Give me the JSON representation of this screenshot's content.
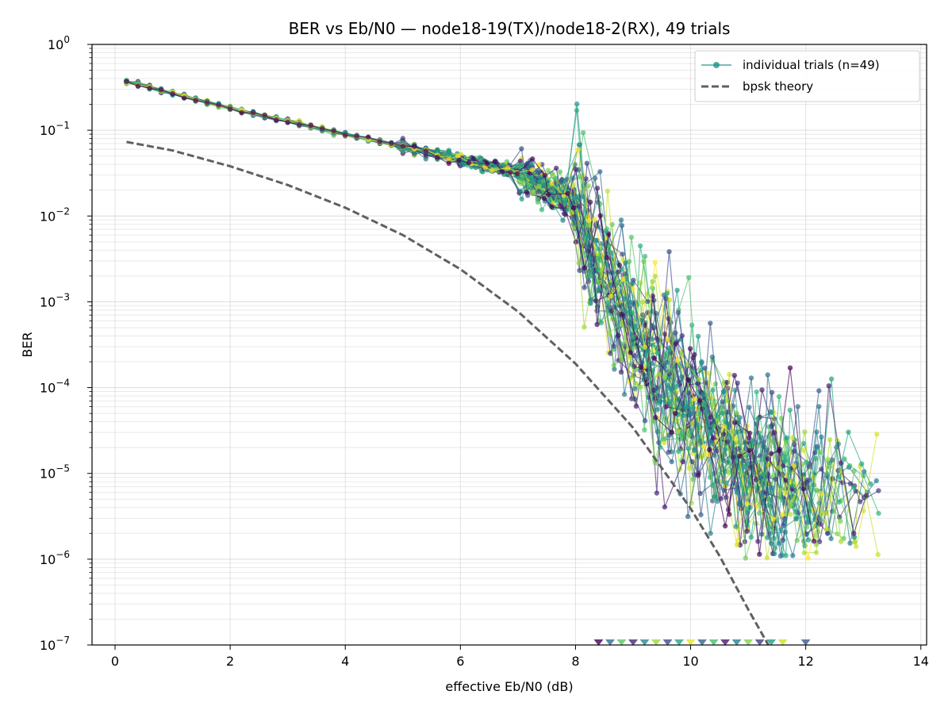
{
  "chart_data": {
    "type": "line",
    "title": "BER vs Eb/N0 — node18-19(TX)/node18-2(RX), 49 trials",
    "xlabel": "effective Eb/N0 (dB)",
    "ylabel": "BER",
    "xlim": [
      -0.4,
      14.1
    ],
    "ylim": [
      1e-07,
      1
    ],
    "yscale": "log",
    "grid": true,
    "legend_position": "top-right",
    "x_ticks": [
      "0",
      "2",
      "4",
      "6",
      "8",
      "10",
      "12",
      "14"
    ],
    "x_tick_values": [
      0,
      2,
      4,
      6,
      8,
      10,
      12,
      14
    ],
    "y_ticks": [
      {
        "base": "10",
        "exp": "0"
      },
      {
        "base": "10",
        "exp": "−1"
      },
      {
        "base": "10",
        "exp": "−2"
      },
      {
        "base": "10",
        "exp": "−3"
      },
      {
        "base": "10",
        "exp": "−4"
      },
      {
        "base": "10",
        "exp": "−5"
      },
      {
        "base": "10",
        "exp": "−6"
      },
      {
        "base": "10",
        "exp": "−7"
      }
    ],
    "y_tick_values": [
      1,
      0.1,
      0.01,
      0.001,
      0.0001,
      1e-05,
      1e-06,
      1e-07
    ],
    "legend": [
      {
        "label": "individual trials (n=49)",
        "color": "#21918c",
        "style": "line-marker"
      },
      {
        "label": "bpsk theory",
        "color": "#606060",
        "style": "dashed"
      }
    ],
    "trial_count": 49,
    "colormap": "viridis",
    "trial_model": {
      "x_start": 0.2,
      "x_step": 0.2,
      "ber_at_x": [
        [
          0.2,
          0.37
        ],
        [
          2,
          0.18
        ],
        [
          4,
          0.09
        ],
        [
          6,
          0.046
        ],
        [
          7,
          0.033
        ],
        [
          8,
          0.014
        ],
        [
          9,
          0.0004
        ],
        [
          10,
          5e-05
        ],
        [
          11,
          1e-05
        ],
        [
          12,
          6e-06
        ]
      ],
      "x_end_range": [
        11.4,
        13.4
      ],
      "min_observable_ber": 1e-06
    },
    "theory_series": {
      "name": "bpsk theory",
      "x": [
        0.2,
        1,
        2,
        3,
        4,
        5,
        6,
        7,
        8,
        9,
        10,
        10.5,
        11,
        11.35
      ],
      "y": [
        0.073,
        0.058,
        0.038,
        0.023,
        0.0125,
        0.006,
        0.0024,
        0.00077,
        0.00019,
        3.4e-05,
        3.9e-06,
        1.1e-06,
        2.6e-07,
        1e-07
      ]
    },
    "zero_error_markers": {
      "y": 1e-07,
      "x": [
        8.4,
        8.6,
        8.8,
        9.0,
        9.2,
        9.4,
        9.6,
        9.8,
        10.0,
        10.2,
        10.4,
        10.6,
        10.8,
        11.0,
        11.2,
        11.4,
        11.6,
        12.0
      ]
    }
  }
}
